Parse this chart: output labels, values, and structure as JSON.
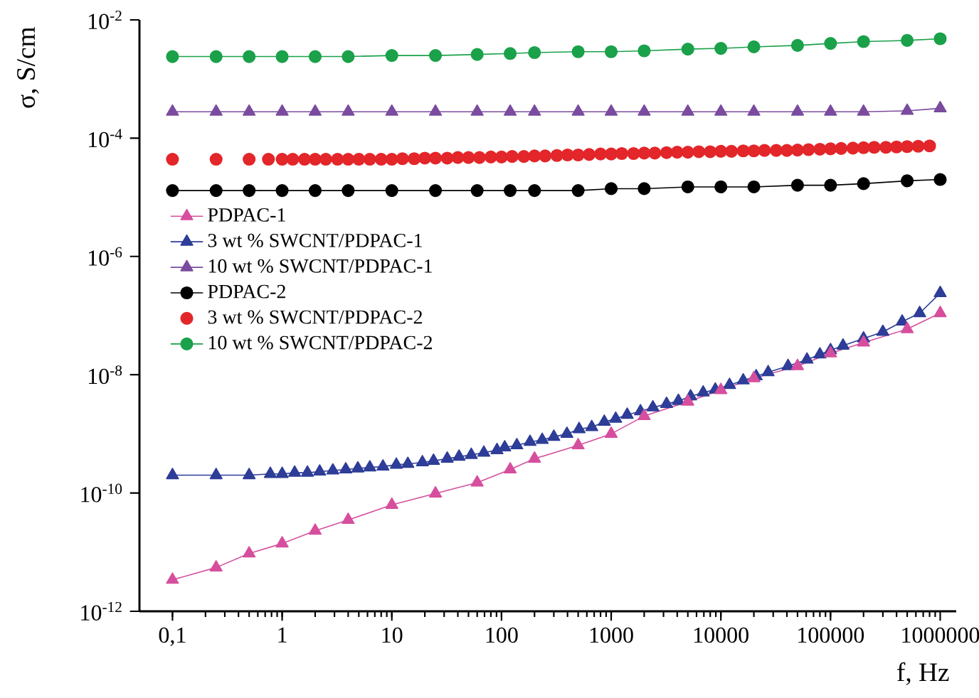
{
  "chart_data": {
    "type": "line",
    "xlabel": "f, Hz",
    "ylabel": "σ, S/cm",
    "log": "xy",
    "legend": "left",
    "grid": false,
    "line_style": "solid",
    "xlim": [
      0.05,
      1400000
    ],
    "ylim": [
      1e-12,
      0.01
    ],
    "xticks": [
      {
        "value": 0.1,
        "label": "0,1"
      },
      1,
      10,
      100,
      1000,
      10000,
      100000,
      1000000
    ],
    "yticks": [
      {
        "value": 1e-12,
        "label": "10$^{-12}$"
      },
      {
        "value": 1e-10,
        "label": "10$^{-10}$"
      },
      {
        "value": 1e-08,
        "label": "10$^{-8}$"
      },
      {
        "value": 1e-06,
        "label": "10$^{-6}$"
      },
      {
        "value": 0.0001,
        "label": "10$^{-4}$"
      },
      {
        "value": 0.01,
        "label": "10$^{-2}$"
      }
    ],
    "series": [
      {
        "name": "PDPAC-1",
        "color": "#d64f9e",
        "marker": "triangle",
        "x": [
          0.1,
          0.25,
          0.5,
          1,
          2,
          4,
          10,
          25,
          60,
          120,
          200,
          500,
          1000,
          2000,
          5000,
          10000,
          20000,
          50000,
          100000,
          200000,
          500000,
          1000000
        ],
        "values": [
          3.4e-12,
          5.5e-12,
          9.5e-12,
          1.4e-11,
          2.3e-11,
          3.5e-11,
          6.3e-11,
          9.8e-11,
          1.5e-10,
          2.5e-10,
          3.8e-10,
          6.4e-10,
          1e-09,
          2e-09,
          3.5e-09,
          5.5e-09,
          8.7e-09,
          1.4e-08,
          2.3e-08,
          3.5e-08,
          5.9e-08,
          1.1e-07
        ]
      },
      {
        "name": "3 wt % SWCNT/PDPAC-1",
        "color": "#2e3d97",
        "marker": "triangle",
        "x": [
          0.1,
          0.25,
          0.5,
          0.78,
          1.0,
          1.3,
          1.7,
          2.2,
          2.9,
          3.8,
          4.9,
          6.3,
          8.3,
          11,
          14,
          19,
          24,
          32,
          41,
          53,
          69,
          91,
          107,
          138,
          182,
          235,
          300,
          395,
          510,
          665,
          865,
          1100,
          1400,
          1850,
          2400,
          3200,
          4100,
          5300,
          6900,
          8900,
          12000,
          16000,
          21000,
          27000,
          41000,
          61000,
          80000,
          100000,
          130000,
          200000,
          300000,
          450000,
          650000,
          1000000
        ],
        "values": [
          2e-10,
          2e-10,
          2e-10,
          2.1e-10,
          2.1e-10,
          2.2e-10,
          2.2e-10,
          2.3e-10,
          2.4e-10,
          2.5e-10,
          2.6e-10,
          2.7e-10,
          2.8e-10,
          3e-10,
          3.1e-10,
          3.3e-10,
          3.5e-10,
          3.8e-10,
          4.1e-10,
          4.4e-10,
          4.8e-10,
          5.3e-10,
          5.9e-10,
          6.4e-10,
          7.3e-10,
          7.9e-10,
          8.9e-10,
          1e-09,
          1.2e-09,
          1.3e-09,
          1.6e-09,
          1.8e-09,
          2.1e-09,
          2.4e-09,
          2.8e-09,
          3.2e-09,
          3.6e-09,
          4.3e-09,
          5e-09,
          5.6e-09,
          6.7e-09,
          8e-09,
          9.4e-09,
          1.1e-08,
          1.4e-08,
          1.8e-08,
          2.2e-08,
          2.6e-08,
          3.1e-08,
          4.1e-08,
          5.3e-08,
          7.9e-08,
          1.1e-07,
          2.4e-07
        ]
      },
      {
        "name": "10 wt % SWCNT/PDPAC-1",
        "color": "#7a4b9e",
        "marker": "triangle",
        "x": [
          0.1,
          0.25,
          0.5,
          1,
          2,
          4,
          10,
          25,
          60,
          120,
          200,
          500,
          1000,
          2000,
          5000,
          10000,
          20000,
          50000,
          100000,
          200000,
          500000,
          1000000
        ],
        "values": [
          0.00028,
          0.00028,
          0.00028,
          0.00028,
          0.00028,
          0.00028,
          0.00028,
          0.00028,
          0.00028,
          0.00028,
          0.00028,
          0.00028,
          0.00028,
          0.00028,
          0.00028,
          0.00028,
          0.00028,
          0.00028,
          0.00028,
          0.00028,
          0.00029,
          0.00032
        ]
      },
      {
        "name": "PDPAC-2",
        "color": "#000000",
        "marker": "circle",
        "x": [
          0.1,
          0.25,
          0.5,
          1,
          2,
          4,
          10,
          25,
          60,
          120,
          200,
          500,
          1000,
          2000,
          5000,
          10000,
          20000,
          50000,
          100000,
          200000,
          500000,
          1000000
        ],
        "values": [
          1.3e-05,
          1.3e-05,
          1.3e-05,
          1.3e-05,
          1.3e-05,
          1.3e-05,
          1.3e-05,
          1.3e-05,
          1.3e-05,
          1.3e-05,
          1.3e-05,
          1.3e-05,
          1.4e-05,
          1.4e-05,
          1.5e-05,
          1.5e-05,
          1.5e-05,
          1.6e-05,
          1.6e-05,
          1.7e-05,
          1.9e-05,
          2e-05
        ]
      },
      {
        "name": "3 wt % SWCNT/PDPAC-2",
        "type": "scatter",
        "color": "#e3262a",
        "marker": "circle",
        "x": [
          0.1,
          0.25,
          0.5,
          0.75,
          1,
          1.25,
          1.6,
          2,
          2.5,
          3.2,
          4,
          5,
          6.3,
          8,
          10,
          12.5,
          16,
          20,
          25,
          32,
          40,
          50,
          63,
          80,
          100,
          125,
          160,
          200,
          250,
          320,
          400,
          500,
          630,
          800,
          1000,
          1250,
          1600,
          2000,
          2500,
          3200,
          4000,
          5000,
          6300,
          8000,
          10000,
          12500,
          16000,
          20000,
          25000,
          32000,
          40000,
          50000,
          63000,
          80000,
          100000,
          125000,
          160000,
          200000,
          250000,
          320000,
          400000,
          500000,
          630000,
          800000
        ],
        "values": [
          4.4e-05,
          4.4e-05,
          4.4e-05,
          4.4e-05,
          4.4e-05,
          4.4e-05,
          4.4e-05,
          4.4e-05,
          4.4e-05,
          4.4e-05,
          4.4e-05,
          4.4e-05,
          4.4e-05,
          4.4e-05,
          4.4e-05,
          4.5e-05,
          4.5e-05,
          4.6e-05,
          4.6e-05,
          4.6e-05,
          4.7e-05,
          4.7e-05,
          4.7e-05,
          4.8e-05,
          4.8e-05,
          4.9e-05,
          4.9e-05,
          5e-05,
          5e-05,
          5.1e-05,
          5.2e-05,
          5.2e-05,
          5.3e-05,
          5.4e-05,
          5.4e-05,
          5.5e-05,
          5.5e-05,
          5.6e-05,
          5.6e-05,
          5.7e-05,
          5.8e-05,
          5.8e-05,
          5.9e-05,
          5.9e-05,
          6e-05,
          6e-05,
          6.1e-05,
          6.1e-05,
          6.2e-05,
          6.2e-05,
          6.2e-05,
          6.3e-05,
          6.4e-05,
          6.5e-05,
          6.6e-05,
          6.7e-05,
          6.8e-05,
          6.9e-05,
          7e-05,
          7e-05,
          7.1e-05,
          7.2e-05,
          7.3e-05,
          7.4e-05
        ]
      },
      {
        "name": "10 wt % SWCNT/PDPAC-2",
        "color": "#1aa14a",
        "marker": "circle",
        "x": [
          0.1,
          0.25,
          0.5,
          1,
          2,
          4,
          10,
          25,
          60,
          120,
          200,
          500,
          1000,
          2000,
          5000,
          10000,
          20000,
          50000,
          100000,
          200000,
          500000,
          1000000
        ],
        "values": [
          0.0024,
          0.0024,
          0.0024,
          0.0024,
          0.0024,
          0.0024,
          0.0025,
          0.0025,
          0.0026,
          0.0027,
          0.0028,
          0.0029,
          0.0029,
          0.003,
          0.0032,
          0.0033,
          0.0035,
          0.0037,
          0.004,
          0.0043,
          0.0045,
          0.0048
        ]
      }
    ]
  }
}
